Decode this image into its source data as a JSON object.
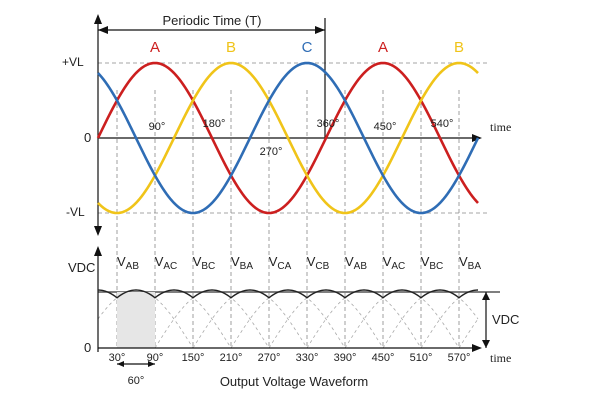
{
  "period_label": "Periodic Time (T)",
  "plus_vl": "+VL",
  "minus_vl": "-VL",
  "zero_label": "0",
  "time_label": "time",
  "top_angles": [
    "90°",
    "180°",
    "270°",
    "360°",
    "450°",
    "540°"
  ],
  "phase_labels": [
    {
      "text": "A",
      "color": "#cc1f1f"
    },
    {
      "text": "B",
      "color": "#f0c419"
    },
    {
      "text": "C",
      "color": "#2f6db5"
    },
    {
      "text": "A",
      "color": "#cc1f1f"
    },
    {
      "text": "B",
      "color": "#f0c419"
    }
  ],
  "vdc_label": "VDC",
  "vdc_side_label": "VDC",
  "line_voltages": [
    "AB",
    "AC",
    "BC",
    "BA",
    "CA",
    "CB",
    "AB",
    "AC",
    "BC",
    "BA"
  ],
  "bottom_angles": [
    "30°",
    "90°",
    "150°",
    "210°",
    "270°",
    "330°",
    "390°",
    "450°",
    "510°",
    "570°"
  ],
  "sixty_label": "60°",
  "caption": "Output Voltage Waveform",
  "colors": {
    "phase_a": "#cc1f1f",
    "phase_b": "#f0c419",
    "phase_c": "#2f6db5",
    "axis": "#111111",
    "grid": "#888888"
  },
  "chart_data": {
    "type": "line",
    "x_unit": "degrees",
    "series": [
      {
        "name": "A",
        "phase_offset_deg": 0
      },
      {
        "name": "B",
        "phase_offset_deg": 120
      },
      {
        "name": "C",
        "phase_offset_deg": 240
      }
    ],
    "amplitude": 1,
    "x_range": [
      0,
      600
    ],
    "rectified_output": "envelope of line voltages AB, AC, BC, BA, CA, CB"
  }
}
